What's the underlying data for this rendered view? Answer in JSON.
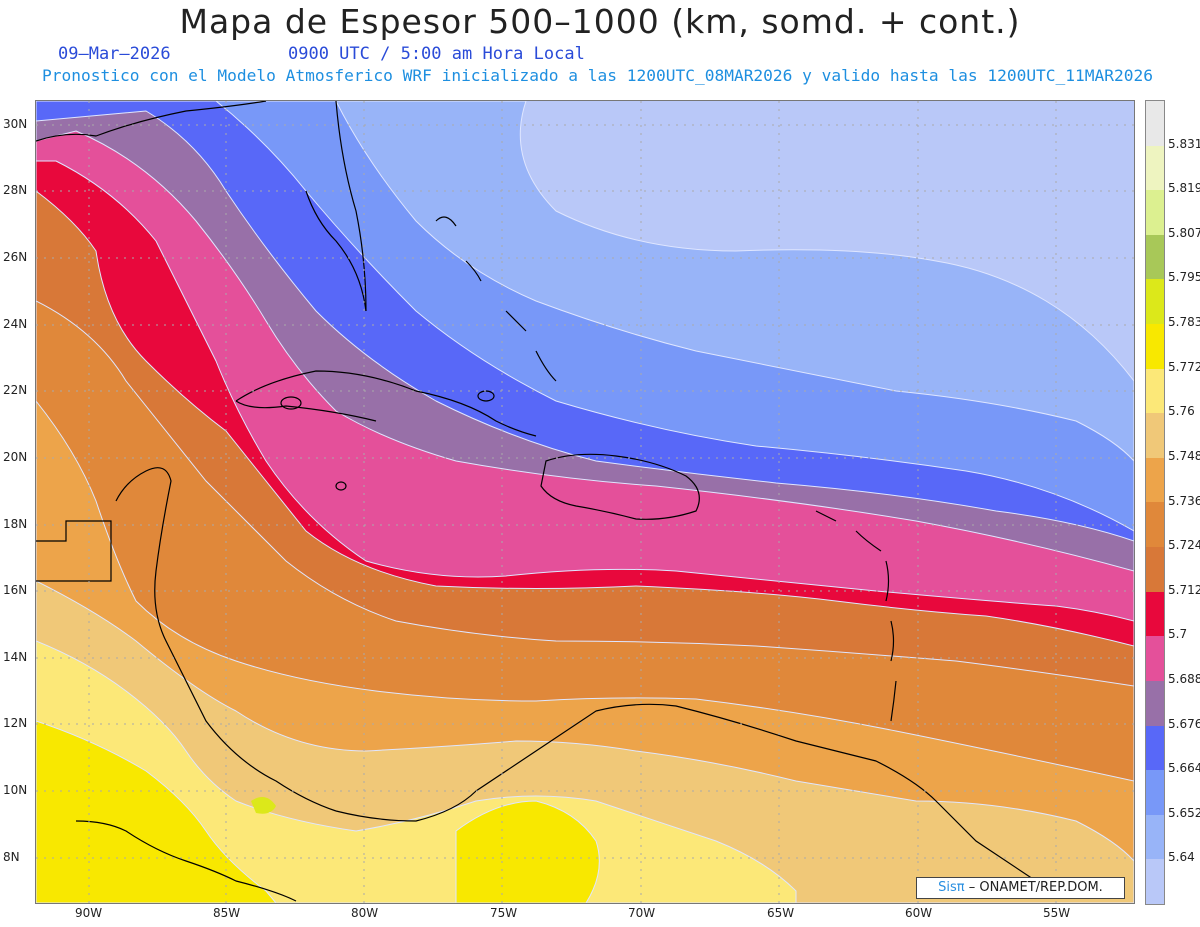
{
  "title": "Mapa de Espesor 500–1000 (km, somd. + cont.)",
  "valid_date": "09–Mar–2026",
  "valid_time": "0900 UTC / 5:00 am Hora Local",
  "model_info": "Pronostico con el Modelo Atmosferico WRF inicializado a las 1200UTC_08MAR2026 y valido hasta las  1200UTC_11MAR2026",
  "lat_labels": [
    "30N",
    "28N",
    "26N",
    "24N",
    "22N",
    "20N",
    "18N",
    "16N",
    "14N",
    "12N",
    "10N",
    "8N"
  ],
  "lon_labels": [
    "90W",
    "85W",
    "80W",
    "75W",
    "70W",
    "65W",
    "60W",
    "55W"
  ],
  "colorbar": {
    "labels": [
      "5.831",
      "5.819",
      "5.807",
      "5.795",
      "5.783",
      "5.772",
      "5.76",
      "5.748",
      "5.736",
      "5.724",
      "5.712",
      "5.7",
      "5.688",
      "5.676",
      "5.664",
      "5.652",
      "5.64"
    ],
    "colors": [
      "#e8e8e8",
      "#eef4c0",
      "#dcf090",
      "#a8c858",
      "#dce81a",
      "#f8e800",
      "#fce878",
      "#f0c878",
      "#eda44a",
      "#e0883a",
      "#d87838",
      "#e8083c",
      "#e4509a",
      "#9870a8",
      "#5868f8",
      "#7898f8",
      "#98b4f8",
      "#b9c8f8"
    ]
  },
  "credit": {
    "brand": "Sisπ",
    "text": "– ONAMET/REP.DOM."
  }
}
